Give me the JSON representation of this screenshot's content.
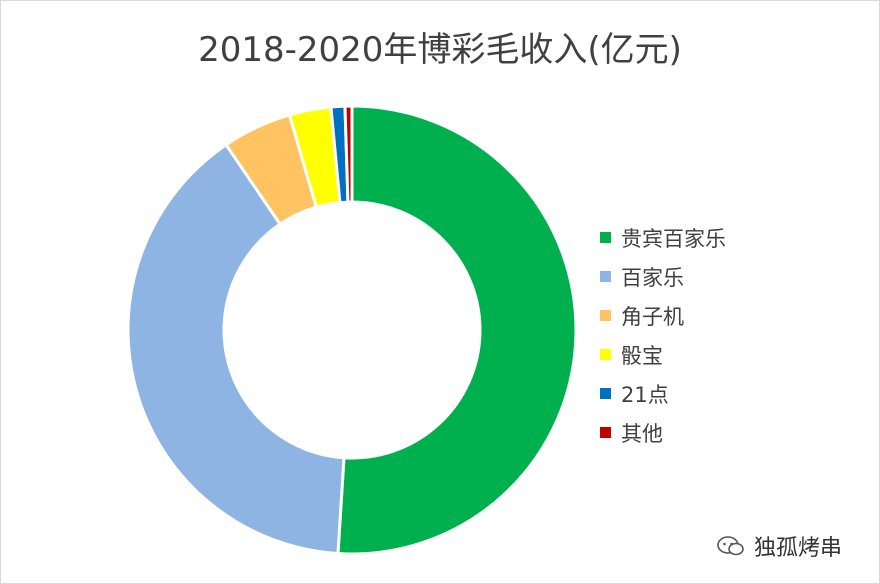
{
  "chart_data": {
    "type": "pie",
    "title": "2018-2020年博彩毛收入(亿元)",
    "legend_position": "right",
    "categories": [
      "贵宾百家乐",
      "百家乐",
      "角子机",
      "骰宝",
      "21点",
      "其他"
    ],
    "values": [
      51.0,
      39.5,
      5.0,
      3.0,
      1.0,
      0.5
    ],
    "colors": [
      "#00b04f",
      "#8eb4e3",
      "#ffc461",
      "#ffff00",
      "#0070c0",
      "#c00000"
    ],
    "style": "donut"
  },
  "watermark": {
    "text": "独孤烤串",
    "icon": "wechat-icon"
  }
}
